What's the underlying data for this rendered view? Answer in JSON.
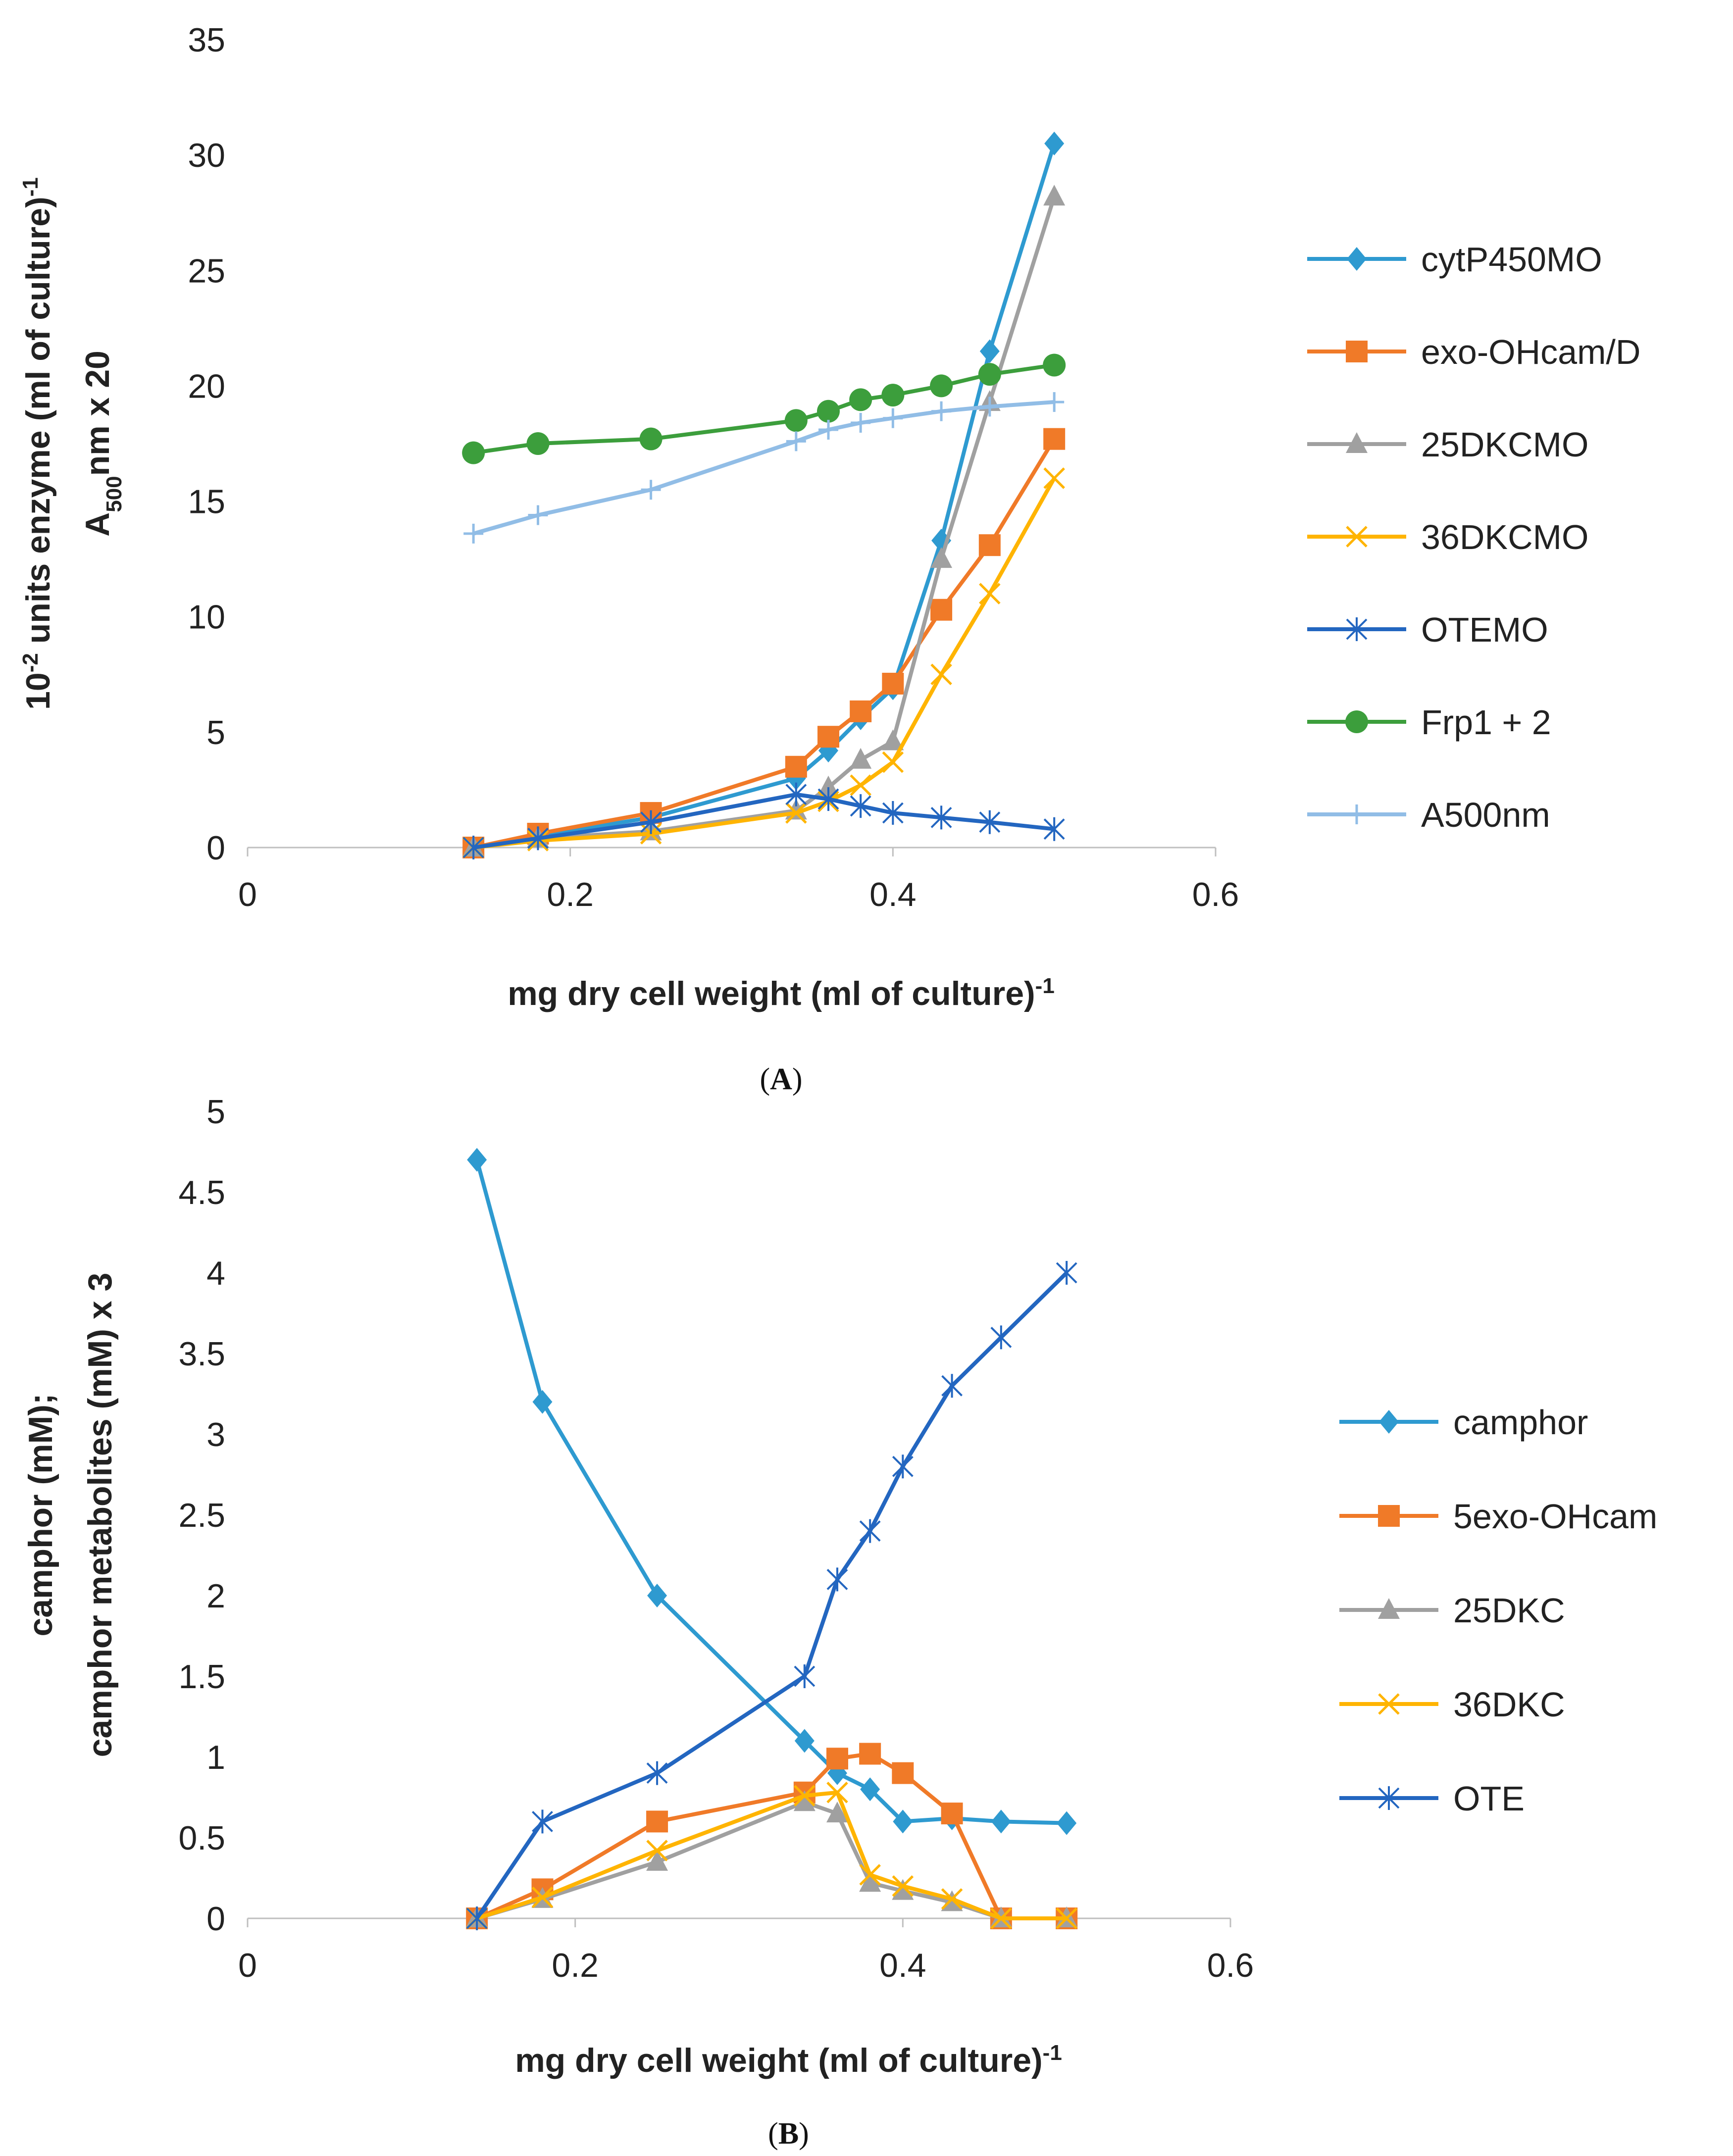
{
  "chart_data": [
    {
      "type": "line",
      "panel_label": "A",
      "xlabel": "mg dry cell weight (ml of culture)",
      "xlabel_sup": "-1",
      "ylabel_line1": {
        "pre": "10",
        "sup1": "-2",
        "mid": " units enzyme (ml of culture)",
        "sup2": "-1"
      },
      "ylabel_line2": {
        "pre": "A",
        "sub": "500",
        "post": "nm x 20"
      },
      "xlim": [
        0,
        0.6
      ],
      "ylim": [
        0,
        35
      ],
      "xticks": [
        0,
        0.2,
        0.4,
        0.6
      ],
      "xtick_labels": [
        "0",
        "0.2",
        "0.4",
        "0.6"
      ],
      "yticks": [
        0,
        5,
        10,
        15,
        20,
        25,
        30,
        35
      ],
      "ytick_labels": [
        "0",
        "5",
        "10",
        "15",
        "20",
        "25",
        "30",
        "35"
      ],
      "x": [
        0.14,
        0.18,
        0.25,
        0.34,
        0.36,
        0.38,
        0.4,
        0.43,
        0.46,
        0.5
      ],
      "series": [
        {
          "name": "cytP450MO",
          "color": "#2E9AD0",
          "marker": "diamond",
          "values": [
            0,
            0.5,
            1.3,
            3.0,
            4.2,
            5.6,
            6.9,
            13.3,
            21.5,
            30.5
          ]
        },
        {
          "name": "exo-OHcam/D",
          "color": "#F07A28",
          "marker": "square",
          "values": [
            0,
            0.6,
            1.5,
            3.5,
            4.8,
            5.9,
            7.1,
            10.3,
            13.1,
            17.7
          ]
        },
        {
          "name": "25DKCMO",
          "color": "#A0A0A0",
          "marker": "triangle",
          "values": [
            0,
            0.4,
            0.7,
            1.6,
            2.6,
            3.8,
            4.6,
            12.5,
            19.3,
            28.2
          ]
        },
        {
          "name": "36DKCMO",
          "color": "#FFB400",
          "marker": "x",
          "values": [
            0,
            0.3,
            0.6,
            1.5,
            2.0,
            2.7,
            3.7,
            7.5,
            11.0,
            16.0
          ]
        },
        {
          "name": "OTEMO",
          "color": "#2366C0",
          "marker": "star",
          "values": [
            0,
            0.4,
            1.1,
            2.3,
            2.1,
            1.8,
            1.5,
            1.3,
            1.1,
            0.8
          ]
        },
        {
          "name": "Frp1 + 2",
          "color": "#3C9E3C",
          "marker": "circle",
          "x": [
            0.14,
            0.18,
            0.25,
            0.34,
            0.36,
            0.38,
            0.4,
            0.43,
            0.46,
            0.5
          ],
          "values": [
            17.1,
            17.5,
            17.7,
            18.5,
            18.9,
            19.4,
            19.6,
            20.0,
            20.5,
            20.9
          ]
        },
        {
          "name": "A500nm",
          "color": "#91BDE6",
          "marker": "plus",
          "values": [
            13.6,
            14.4,
            15.5,
            17.6,
            18.1,
            18.4,
            18.6,
            18.9,
            19.1,
            19.3
          ]
        }
      ]
    },
    {
      "type": "line",
      "panel_label": "B",
      "xlabel": "mg dry cell weight (ml of culture)",
      "xlabel_sup": "-1",
      "ylabel_line1": "camphor (mM);",
      "ylabel_line2": "camphor metabolites (mM) x 3",
      "xlim": [
        0,
        0.6
      ],
      "ylim": [
        0,
        5
      ],
      "xticks": [
        0,
        0.2,
        0.4,
        0.6
      ],
      "xtick_labels": [
        "0",
        "0.2",
        "0.4",
        "0.6"
      ],
      "yticks": [
        0,
        0.5,
        1,
        1.5,
        2,
        2.5,
        3,
        3.5,
        4,
        4.5,
        5
      ],
      "ytick_labels": [
        "0",
        "0.5",
        "1",
        "1.5",
        "2",
        "2.5",
        "3",
        "3.5",
        "4",
        "4.5",
        "5"
      ],
      "x": [
        0.14,
        0.18,
        0.25,
        0.34,
        0.36,
        0.38,
        0.4,
        0.43,
        0.46,
        0.5
      ],
      "series": [
        {
          "name": "camphor",
          "color": "#2E9AD0",
          "marker": "diamond",
          "values": [
            4.7,
            3.2,
            2.0,
            1.1,
            0.9,
            0.8,
            0.6,
            0.62,
            0.6,
            0.59
          ]
        },
        {
          "name": "5exo-OHcam",
          "color": "#F07A28",
          "marker": "square",
          "values": [
            0,
            0.18,
            0.6,
            0.78,
            0.99,
            1.02,
            0.9,
            0.65,
            0,
            0
          ]
        },
        {
          "name": "25DKC",
          "color": "#A0A0A0",
          "marker": "triangle",
          "values": [
            0,
            0.12,
            0.35,
            0.72,
            0.65,
            0.22,
            0.17,
            0.1,
            0,
            0
          ]
        },
        {
          "name": "36DKC",
          "color": "#FFB400",
          "marker": "x",
          "values": [
            0,
            0.13,
            0.42,
            0.76,
            0.78,
            0.27,
            0.2,
            0.12,
            0,
            0
          ]
        },
        {
          "name": "OTE",
          "color": "#2366C0",
          "marker": "star",
          "values": [
            0,
            0.6,
            0.9,
            1.5,
            2.1,
            2.4,
            2.8,
            3.3,
            3.6,
            4.0
          ]
        }
      ]
    }
  ]
}
